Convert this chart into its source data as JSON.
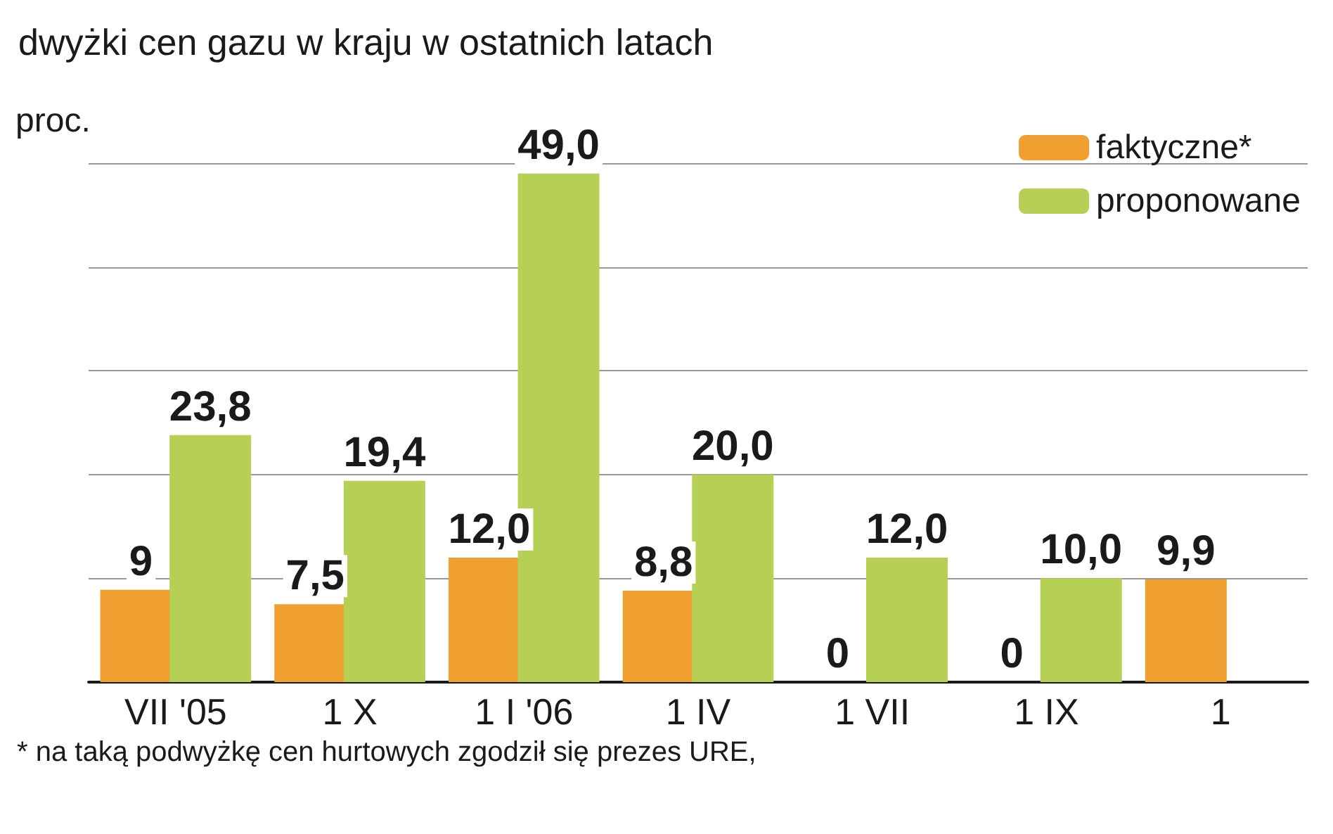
{
  "chart_data": {
    "type": "bar",
    "title": "dwyżki cen gazu w kraju w ostatnich latach",
    "ylabel": "proc.",
    "categories": [
      "VII '05",
      "1 X",
      "1 I '06",
      "1 IV",
      "1 VII",
      "1 IX",
      "1"
    ],
    "series": [
      {
        "name": "faktyczne*",
        "color": "#f0a030",
        "values": [
          8.9,
          7.5,
          12.0,
          8.8,
          0,
          0,
          9.9
        ],
        "value_labels": [
          "9",
          "7,5",
          "12,0",
          "8,8",
          "0",
          "0",
          "9,9"
        ]
      },
      {
        "name": "proponowane",
        "color": "#b5d055",
        "values": [
          23.8,
          19.4,
          49.0,
          20.0,
          12.0,
          10.0,
          null
        ],
        "value_labels": [
          "23,8",
          "19,4",
          "49,0",
          "20,0",
          "12,0",
          "10,0",
          null
        ]
      }
    ],
    "ylim": [
      0,
      50
    ],
    "yticks": [
      {
        "value": 0,
        "label": null
      },
      {
        "value": 10,
        "label": null
      },
      {
        "value": 20,
        "label": null
      },
      {
        "value": 30,
        "label": null
      },
      {
        "value": 40,
        "label": null
      },
      {
        "value": 50,
        "label": null
      }
    ],
    "grid": "y",
    "legend": "top right",
    "annotations": [
      "* na taką podwyżkę cen hurtowych zgodził się prezes URE,"
    ]
  }
}
